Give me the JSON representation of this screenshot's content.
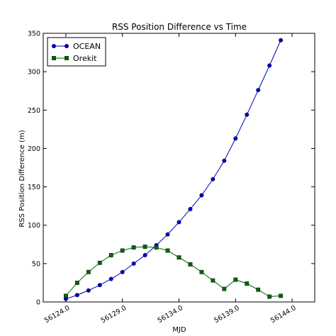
{
  "chart_data": {
    "type": "line",
    "title": "RSS Position Difference vs Time",
    "xlabel": "MJD",
    "ylabel": "RSS Position Difference (m)",
    "xlim": [
      56122.0,
      56146.0
    ],
    "ylim": [
      0,
      350
    ],
    "xticks": [
      56124.0,
      56129.0,
      56134.0,
      56139.0,
      56144.0
    ],
    "xtick_labels": [
      "56124.0",
      "56129.0",
      "56134.0",
      "56139.0",
      "56144.0"
    ],
    "yticks": [
      0,
      50,
      100,
      150,
      200,
      250,
      300,
      350
    ],
    "ytick_labels": [
      "0",
      "50",
      "100",
      "150",
      "200",
      "250",
      "300",
      "350"
    ],
    "grid": false,
    "legend_position": "top-left",
    "series": [
      {
        "name": "OCEAN",
        "color": "#0000bb",
        "marker": "circle",
        "x": [
          56124,
          56125,
          56126,
          56127,
          56128,
          56129,
          56130,
          56131,
          56132,
          56133,
          56134,
          56135,
          56136,
          56137,
          56138,
          56139,
          56140,
          56141,
          56142,
          56143
        ],
        "y": [
          4,
          9,
          15,
          22,
          30,
          39,
          50,
          61,
          74,
          88,
          104,
          121,
          139,
          160,
          184,
          213,
          244,
          276,
          308,
          341
        ]
      },
      {
        "name": "Orekit",
        "color": "#006600",
        "marker": "square",
        "x": [
          56124,
          56125,
          56126,
          56127,
          56128,
          56129,
          56130,
          56131,
          56132,
          56133,
          56134,
          56135,
          56136,
          56137,
          56138,
          56139,
          56140,
          56141,
          56142,
          56143
        ],
        "y": [
          8,
          25,
          39,
          51,
          61,
          67,
          71,
          72,
          71,
          67,
          58,
          49,
          39,
          28,
          17,
          29,
          24,
          16,
          7,
          8
        ]
      }
    ]
  }
}
